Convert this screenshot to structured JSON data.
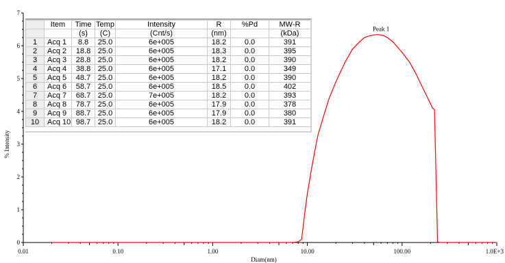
{
  "chart_data": {
    "type": "line",
    "x_scale": "log",
    "xlim": [
      0.01,
      1000
    ],
    "ylim": [
      0,
      7
    ],
    "xlabel": "Diam(nm)",
    "ylabel": "% Intensity",
    "x_tick_labels": [
      {
        "value": 0.01,
        "label": "0.01"
      },
      {
        "value": 0.1,
        "label": "0.10"
      },
      {
        "value": 1,
        "label": "1.00"
      },
      {
        "value": 10,
        "label": "10.00"
      },
      {
        "value": 100,
        "label": "100.00"
      },
      {
        "value": 1000,
        "label": "1.0E+3"
      }
    ],
    "y_ticks": [
      0,
      1,
      2,
      3,
      4,
      5,
      6,
      7
    ],
    "line_color": "#ff0000",
    "grid": false,
    "series": [
      {
        "x": [
          0.02,
          0.1,
          1,
          7,
          8,
          8.7,
          9.3,
          10,
          11,
          12,
          13,
          15,
          17,
          20,
          25,
          30,
          35,
          40,
          45,
          50,
          55,
          60,
          65,
          70,
          80,
          90,
          100,
          120,
          140,
          160,
          180,
          210,
          220,
          237,
          250,
          1000
        ],
        "y": [
          0,
          0,
          0,
          0,
          0.02,
          0.1,
          0.8,
          1.5,
          2.2,
          2.8,
          3.3,
          3.9,
          4.4,
          4.9,
          5.5,
          5.9,
          6.1,
          6.25,
          6.3,
          6.33,
          6.34,
          6.33,
          6.3,
          6.25,
          6.12,
          5.95,
          5.8,
          5.5,
          5.15,
          4.8,
          4.5,
          4.1,
          4.05,
          0.02,
          0,
          0
        ]
      }
    ],
    "annotations": [
      {
        "text": "Peak 1",
        "x": 60,
        "y": 6.45
      }
    ],
    "table": {
      "headers_row1": [
        "",
        "Item",
        "Time",
        "Temp",
        "Intensity",
        "R",
        "%Pd",
        "MW-R"
      ],
      "headers_row2": [
        "",
        "",
        "(s)",
        "(C)",
        "(Cnt/s)",
        "(nm)",
        "",
        "(kDa)"
      ],
      "rows": [
        [
          "1",
          "Acq 1",
          "8.8",
          "25.0",
          "6e+005",
          "18.2",
          "0.0",
          "391"
        ],
        [
          "2",
          "Acq 2",
          "18.8",
          "25.0",
          "6e+005",
          "18.3",
          "0.0",
          "395"
        ],
        [
          "3",
          "Acq 3",
          "28.8",
          "25.0",
          "6e+005",
          "18.2",
          "0.0",
          "390"
        ],
        [
          "4",
          "Acq 4",
          "38.8",
          "25.0",
          "6e+005",
          "17.1",
          "0.0",
          "349"
        ],
        [
          "5",
          "Acq 5",
          "48.7",
          "25.0",
          "6e+005",
          "18.2",
          "0.0",
          "390"
        ],
        [
          "6",
          "Acq 6",
          "58.7",
          "25.0",
          "6e+005",
          "18.5",
          "0.0",
          "402"
        ],
        [
          "7",
          "Acq 7",
          "68.7",
          "25.0",
          "7e+005",
          "18.2",
          "0.0",
          "393"
        ],
        [
          "8",
          "Acq 8",
          "78.7",
          "25.0",
          "6e+005",
          "17.9",
          "0.0",
          "378"
        ],
        [
          "9",
          "Acq 9",
          "88.7",
          "25.0",
          "6e+005",
          "17.9",
          "0.0",
          "380"
        ],
        [
          "10",
          "Acq 10",
          "98.7",
          "25.0",
          "6e+005",
          "18.2",
          "0.0",
          "391"
        ]
      ]
    }
  }
}
